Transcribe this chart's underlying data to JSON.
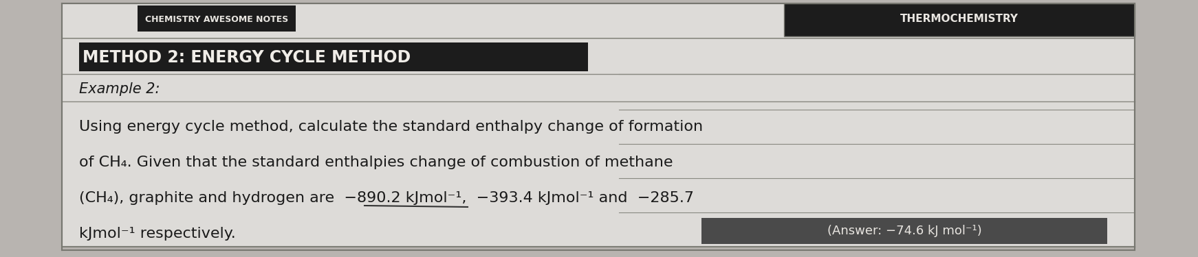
{
  "bg_color": "#b8b4b0",
  "paper_color": "#dddbd8",
  "header_bar_color": "#1c1c1c",
  "header_text": "METHOD 2: ENERGY CYCLE METHOD",
  "header_text_color": "#f0ede8",
  "example_label": "Example 2:",
  "body_line1": "Using energy cycle method, calculate the standard enthalpy change of formation",
  "body_line2": "of CH₄. Given that the standard enthalpies change of combustion of methane",
  "body_line3": "(CH₄), graphite and hydrogen are  −890.2 kJmol⁻¹,  −393.4 kJmol⁻¹ and  −285.7",
  "body_line4": "kJmol⁻¹ respectively.",
  "answer_text": "(Answer: −74.6 kJ mol⁻¹)",
  "answer_bg": "#4a4a4a",
  "answer_text_color": "#e8e5e0",
  "top_banner_text": "CHEMISTRY AWESOME NOTES",
  "top_right_text": "THERMOCHEMISTRY",
  "top_banner_bg": "#1c1c1c",
  "body_text_color": "#1a1a1a",
  "line_color": "#888880",
  "border_color": "#777770",
  "font_size_header": 17,
  "font_size_body": 16,
  "font_size_example": 15,
  "font_size_answer": 13,
  "font_size_banner": 9,
  "font_size_top_right": 11
}
